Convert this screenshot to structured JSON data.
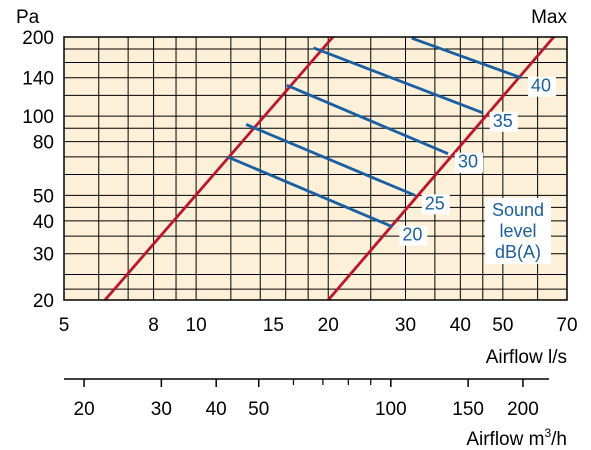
{
  "chart_data": {
    "type": "line",
    "title": "",
    "y_unit_label": "Pa",
    "corner_label": "Max",
    "xlabel": "Airflow l/s",
    "x2label": "Airflow m³/h",
    "x2label_base": "Airflow m",
    "x2label_sup": "3",
    "x2label_tail": "/h",
    "x_scale": "log",
    "y_scale": "log",
    "xlim": [
      5,
      70
    ],
    "ylim": [
      20,
      200
    ],
    "x_ticks": [
      5,
      8,
      10,
      15,
      20,
      30,
      40,
      50,
      70
    ],
    "x_tick_labels": [
      "5",
      "8",
      "10",
      "15",
      "20",
      "30",
      "40",
      "50",
      "70"
    ],
    "y_ticks": [
      20,
      30,
      40,
      50,
      80,
      100,
      140,
      200
    ],
    "y_tick_labels": [
      "20",
      "30",
      "40",
      "50",
      "80",
      "100",
      "140",
      "200"
    ],
    "x_grid": [
      5,
      6,
      7,
      8,
      9,
      10,
      12,
      14,
      16,
      18,
      20,
      25,
      30,
      35,
      40,
      45,
      50,
      60,
      70
    ],
    "y_grid": [
      20,
      22,
      25,
      30,
      35,
      40,
      45,
      50,
      60,
      70,
      80,
      90,
      100,
      120,
      140,
      160,
      180,
      200
    ],
    "x2_ticks": [
      20,
      30,
      40,
      50,
      100,
      150,
      200
    ],
    "x2_tick_labels": [
      "20",
      "30",
      "40",
      "50",
      "100",
      "150",
      "200"
    ],
    "x2_minor_ticks": [
      60,
      70,
      80,
      90
    ],
    "grid": true,
    "colors": {
      "background": "#fcf0d9",
      "grid": "#000000",
      "boundary": "#c1132a",
      "sound": "#1b5fa3",
      "label": "#1b5fa3"
    },
    "boundary_lines": [
      {
        "x": [
          6.2,
          20.5
        ],
        "y": [
          20,
          200
        ]
      },
      {
        "x": [
          20.0,
          65.3
        ],
        "y": [
          20,
          200
        ]
      }
    ],
    "sound_lines": [
      {
        "label": "20",
        "x": [
          11.8,
          28.0
        ],
        "y": [
          70,
          38
        ]
      },
      {
        "label": "25",
        "x": [
          13.0,
          31.5
        ],
        "y": [
          93,
          50
        ]
      },
      {
        "label": "30",
        "x": [
          16.1,
          37.5
        ],
        "y": [
          131,
          72
        ]
      },
      {
        "label": "35",
        "x": [
          18.5,
          45.0
        ],
        "y": [
          182,
          103
        ]
      },
      {
        "label": "40",
        "x": [
          31.0,
          55.0
        ],
        "y": [
          198,
          140
        ]
      }
    ],
    "legend_lines": [
      "Sound",
      "level",
      "dB(A)"
    ]
  }
}
